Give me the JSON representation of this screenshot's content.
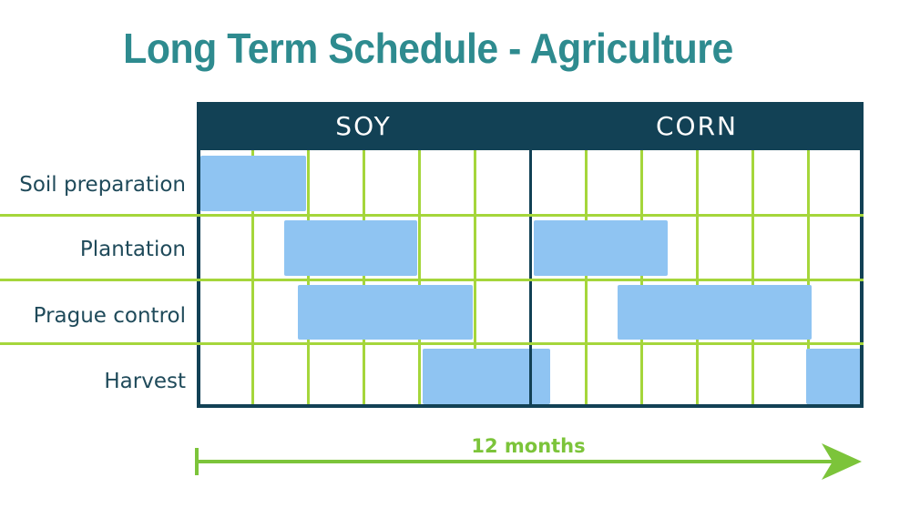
{
  "title": "Long Term Schedule - Agriculture",
  "crops": [
    "SOY",
    "CORN"
  ],
  "rows": [
    "Soil preparation",
    "Plantation",
    "Prague control",
    "Harvest"
  ],
  "tasks": [
    {
      "row": 0,
      "start": 0,
      "end": 2
    },
    {
      "row": 1,
      "start": 1.5,
      "end": 4
    },
    {
      "row": 1,
      "start": 6,
      "end": 8.5
    },
    {
      "row": 2,
      "start": 1.75,
      "end": 5
    },
    {
      "row": 2,
      "start": 7.5,
      "end": 11.1
    },
    {
      "row": 3,
      "start": 4,
      "end": 6.4
    },
    {
      "row": 3,
      "start": 10.9,
      "end": 12
    }
  ],
  "timeline": {
    "label": "12 months"
  },
  "colors": {
    "title": "#2e8b8f",
    "label": "#1f4a5a",
    "header": "#124155",
    "grid": "#a5d63b",
    "bar": "#8fc4f2",
    "arrow": "#7cc43a"
  }
}
